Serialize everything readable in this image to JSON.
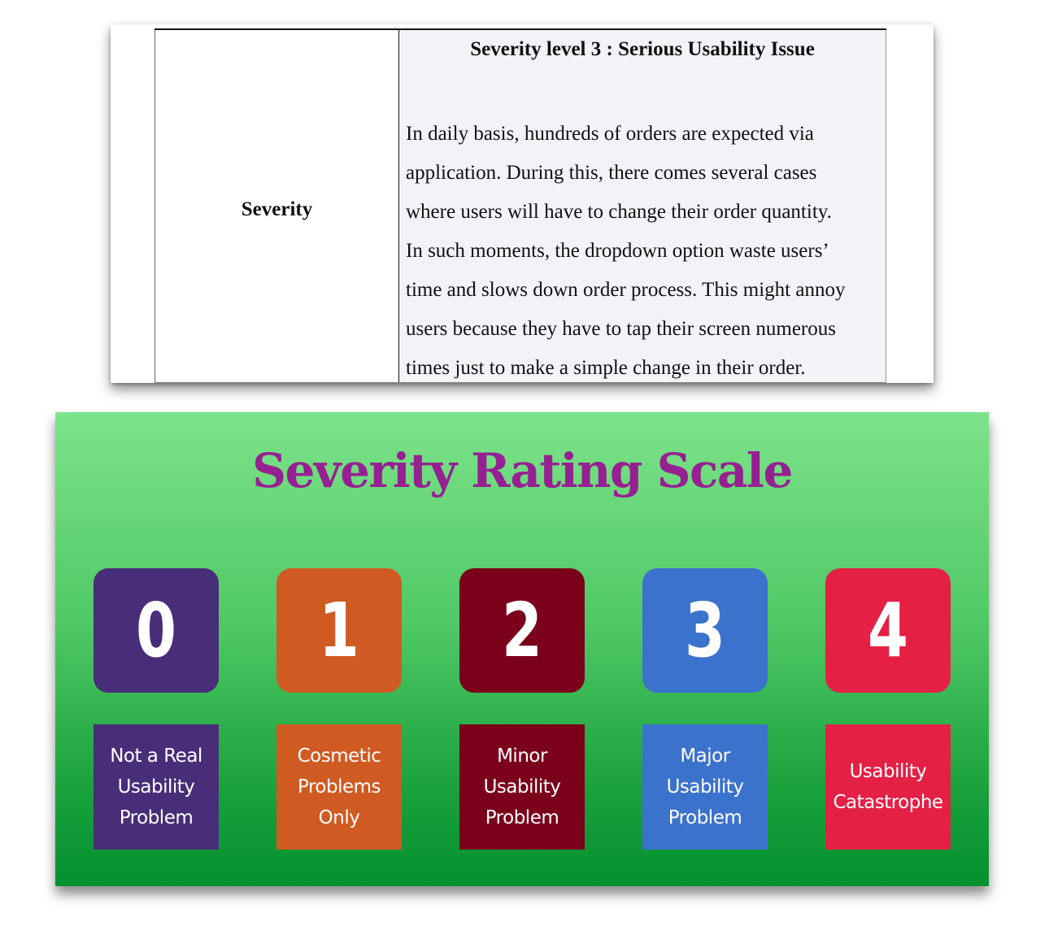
{
  "document": {
    "row_label": "Severity",
    "heading": "Severity level 3 : Serious Usability Issue",
    "lines": [
      "In daily basis, hundreds of orders are expected via",
      "application. During this, there comes several cases",
      "where users will have to change their order quantity.",
      "In such moments, the dropdown option waste users’",
      "time and slows down order process. This might annoy",
      "users because they have to tap their screen numerous",
      "times just to make a simple change in their order."
    ]
  },
  "scale": {
    "title": "Severity Rating Scale",
    "levels": [
      {
        "number": "0",
        "label": "Not a Real Usability Problem",
        "color": "#482d78"
      },
      {
        "number": "1",
        "label": "Cosmetic Problems Only",
        "color": "#cf5a22"
      },
      {
        "number": "2",
        "label": "Minor Usability Problem",
        "color": "#7b001b"
      },
      {
        "number": "3",
        "label": "Major Usability Problem",
        "color": "#3b72cc"
      },
      {
        "number": "4",
        "label": "Usability Catastrophe",
        "color": "#e42045"
      }
    ]
  }
}
